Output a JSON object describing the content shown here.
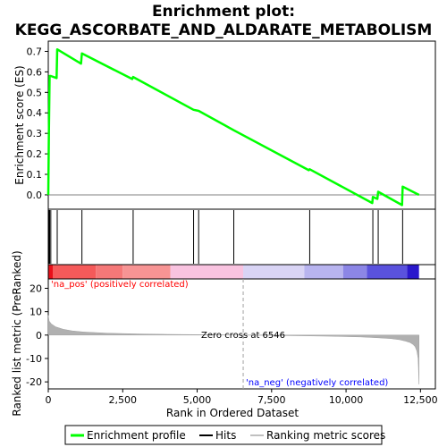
{
  "chart_data": {
    "type": "line",
    "title_line1": "Enrichment plot:",
    "title_line2": "KEGG_ASCORBATE_AND_ALDARATE_METABOLISM",
    "es_panel": {
      "ylabel": "Enrichment score (ES)",
      "ylim": [
        -0.07,
        0.75
      ],
      "yticks": [
        "0.0",
        "0.1",
        "0.2",
        "0.3",
        "0.4",
        "0.5",
        "0.6",
        "0.7"
      ],
      "ytick_values": [
        0.0,
        0.1,
        0.2,
        0.3,
        0.4,
        0.5,
        0.6,
        0.7
      ],
      "series_name": "Enrichment profile",
      "color": "#00ff00",
      "x": [
        0,
        20,
        45,
        85,
        280,
        300,
        1100,
        1130,
        2820,
        2850,
        4880,
        5050,
        6230,
        8750,
        8780,
        10880,
        10900,
        11050,
        11080,
        11880,
        11900,
        12450
      ],
      "y": [
        0.0,
        0.31,
        0.58,
        0.58,
        0.57,
        0.71,
        0.64,
        0.69,
        0.565,
        0.575,
        0.415,
        0.41,
        0.315,
        0.12,
        0.125,
        -0.04,
        -0.01,
        -0.02,
        0.015,
        -0.05,
        0.04,
        0.0
      ]
    },
    "hits": {
      "series_name": "Hits",
      "positions": [
        20,
        45,
        85,
        300,
        1130,
        2850,
        4880,
        5050,
        6230,
        8780,
        10900,
        11080,
        11900
      ]
    },
    "rank_metric": {
      "series_name": "Ranking metric scores",
      "ylabel": "Ranked list metric (PreRanked)",
      "xlabel": "Rank in Ordered Dataset",
      "ylim": [
        -23,
        24
      ],
      "yticks": [
        "-20",
        "-10",
        "0",
        "10",
        "20"
      ],
      "ytick_values": [
        -20,
        -10,
        0,
        10,
        20
      ],
      "xlim": [
        0,
        13000
      ],
      "xticks": [
        "0",
        "2,500",
        "5,000",
        "7,500",
        "10,000",
        "12,500"
      ],
      "xtick_values": [
        0,
        2500,
        5000,
        7500,
        10000,
        12500
      ],
      "n_genes": 12450,
      "zero_cross": 6546,
      "zero_cross_label": "Zero cross at 6546",
      "pos_label": "'na_pos' (positively correlated)",
      "neg_label": "'na_neg' (negatively correlated)",
      "pos_color": "#ff0000",
      "neg_color": "#0000ff",
      "profile_x": [
        0,
        30,
        100,
        250,
        500,
        800,
        1200,
        2000,
        3000,
        4000,
        5000,
        6000,
        6546,
        7500,
        8500,
        9500,
        10500,
        11000,
        11500,
        11800,
        12000,
        12150,
        12250,
        12320,
        12380,
        12420,
        12450
      ],
      "profile_y": [
        8.5,
        6.0,
        4.8,
        3.5,
        2.5,
        1.8,
        1.3,
        0.8,
        0.5,
        0.3,
        0.2,
        0.08,
        0.0,
        -0.15,
        -0.3,
        -0.5,
        -0.8,
        -1.1,
        -1.5,
        -2.0,
        -2.6,
        -3.2,
        -4.0,
        -5.0,
        -6.8,
        -10.0,
        -21.0
      ]
    },
    "heat_bands": [
      {
        "from": 0,
        "to": 150,
        "color": "#e8101a"
      },
      {
        "from": 150,
        "to": 1600,
        "color": "#f55a5a"
      },
      {
        "from": 1600,
        "to": 2500,
        "color": "#f57878"
      },
      {
        "from": 2500,
        "to": 4100,
        "color": "#f79494"
      },
      {
        "from": 4100,
        "to": 6546,
        "color": "#f9c3e0"
      },
      {
        "from": 6546,
        "to": 8600,
        "color": "#d9d4f5"
      },
      {
        "from": 8600,
        "to": 9900,
        "color": "#b8b4ef"
      },
      {
        "from": 9900,
        "to": 10700,
        "color": "#8c86e6"
      },
      {
        "from": 10700,
        "to": 12050,
        "color": "#5a52dd"
      },
      {
        "from": 12050,
        "to": 12450,
        "color": "#2a18cc"
      }
    ],
    "legend": {
      "items": [
        "Enrichment profile",
        "Hits",
        "Ranking metric scores"
      ],
      "colors": [
        "#00ff00",
        "#000000",
        "#c0c0c0"
      ],
      "placement": "bottom"
    }
  }
}
